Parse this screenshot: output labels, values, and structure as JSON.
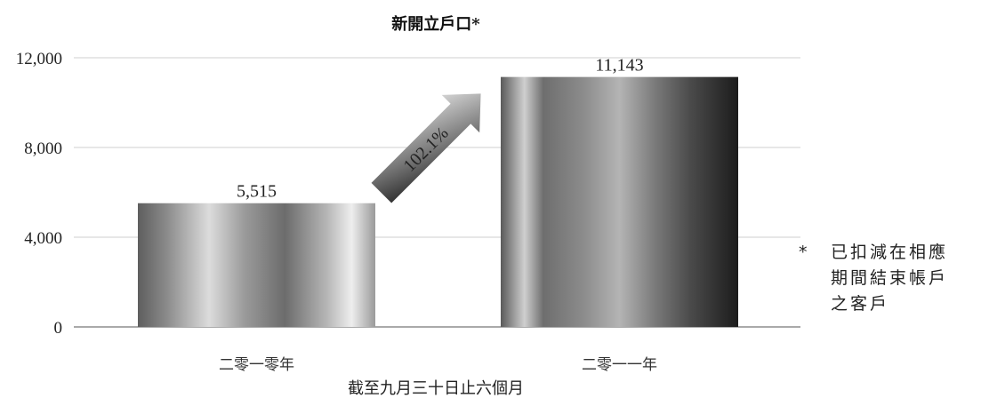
{
  "chart_data": {
    "type": "bar",
    "title": "新開立戶口*",
    "xlabel": "截至九月三十日止六個月",
    "ylabel": "",
    "categories": [
      "二零一零年",
      "二零一一年"
    ],
    "values": [
      5515,
      11143
    ],
    "value_labels": [
      "5,515",
      "11,143"
    ],
    "ylim": [
      0,
      12000
    ],
    "yticks": [
      0,
      4000,
      8000,
      12000
    ],
    "ytick_labels": [
      "0",
      "4,000",
      "8,000",
      "12,000"
    ],
    "grid": true,
    "annotation": {
      "text": "102.1%",
      "type": "growth-arrow"
    }
  },
  "footnote": {
    "marker": "*",
    "lines": [
      "已扣減在相應",
      "期間結束帳戶",
      "之客戶"
    ]
  }
}
